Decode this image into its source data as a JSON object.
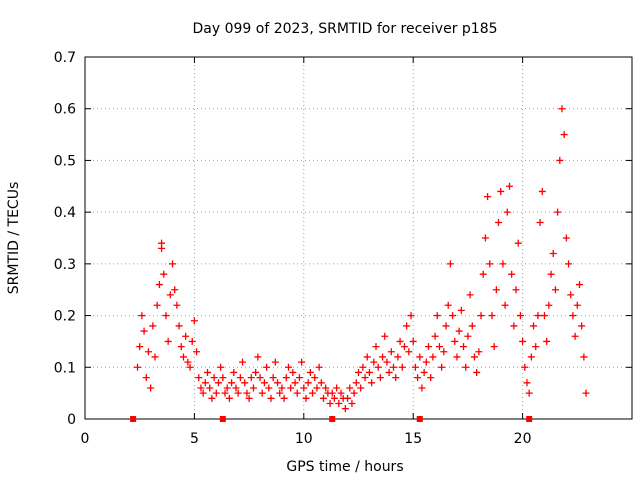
{
  "chart_data": {
    "type": "scatter",
    "title": "Day 099 of 2023, SRMTID for receiver p185",
    "xlabel": "GPS time / hours",
    "ylabel": "SRMTID / TECUs",
    "xlim": [
      0,
      25
    ],
    "ylim": [
      0,
      0.7
    ],
    "xticks": [
      0,
      5,
      10,
      15,
      20
    ],
    "yticks": [
      0,
      0.1,
      0.2,
      0.3,
      0.4,
      0.5,
      0.6,
      0.7
    ],
    "xtick_labels": [
      "0",
      "5",
      "10",
      "15",
      "20"
    ],
    "ytick_labels": [
      "0",
      "0.1",
      "0.2",
      "0.3",
      "0.4",
      "0.5",
      "0.6",
      "0.7"
    ],
    "grid": true,
    "marker": "+",
    "color": "#ff0000",
    "zero_markers_x": [
      2.2,
      6.3,
      11.3,
      15.3,
      20.3
    ],
    "series": [
      {
        "name": "SRMTID",
        "points": [
          [
            2.4,
            0.1
          ],
          [
            2.5,
            0.14
          ],
          [
            2.6,
            0.2
          ],
          [
            2.7,
            0.17
          ],
          [
            2.8,
            0.08
          ],
          [
            2.9,
            0.13
          ],
          [
            3.0,
            0.06
          ],
          [
            3.1,
            0.18
          ],
          [
            3.2,
            0.12
          ],
          [
            3.3,
            0.22
          ],
          [
            3.4,
            0.26
          ],
          [
            3.5,
            0.33
          ],
          [
            3.5,
            0.34
          ],
          [
            3.6,
            0.28
          ],
          [
            3.7,
            0.2
          ],
          [
            3.8,
            0.15
          ],
          [
            3.9,
            0.24
          ],
          [
            4.0,
            0.3
          ],
          [
            4.1,
            0.25
          ],
          [
            4.2,
            0.22
          ],
          [
            4.3,
            0.18
          ],
          [
            4.4,
            0.14
          ],
          [
            4.5,
            0.12
          ],
          [
            4.6,
            0.16
          ],
          [
            4.7,
            0.11
          ],
          [
            4.8,
            0.1
          ],
          [
            4.9,
            0.15
          ],
          [
            5.0,
            0.19
          ],
          [
            5.1,
            0.13
          ],
          [
            5.2,
            0.08
          ],
          [
            5.3,
            0.06
          ],
          [
            5.4,
            0.05
          ],
          [
            5.5,
            0.07
          ],
          [
            5.6,
            0.09
          ],
          [
            5.7,
            0.06
          ],
          [
            5.8,
            0.04
          ],
          [
            5.9,
            0.08
          ],
          [
            6.0,
            0.05
          ],
          [
            6.1,
            0.07
          ],
          [
            6.2,
            0.1
          ],
          [
            6.3,
            0.08
          ],
          [
            6.4,
            0.05
          ],
          [
            6.5,
            0.06
          ],
          [
            6.6,
            0.04
          ],
          [
            6.7,
            0.07
          ],
          [
            6.8,
            0.09
          ],
          [
            6.9,
            0.06
          ],
          [
            7.0,
            0.05
          ],
          [
            7.1,
            0.08
          ],
          [
            7.2,
            0.11
          ],
          [
            7.3,
            0.07
          ],
          [
            7.4,
            0.05
          ],
          [
            7.5,
            0.04
          ],
          [
            7.6,
            0.08
          ],
          [
            7.7,
            0.06
          ],
          [
            7.8,
            0.09
          ],
          [
            7.9,
            0.12
          ],
          [
            8.0,
            0.08
          ],
          [
            8.1,
            0.05
          ],
          [
            8.2,
            0.07
          ],
          [
            8.3,
            0.1
          ],
          [
            8.4,
            0.06
          ],
          [
            8.5,
            0.04
          ],
          [
            8.6,
            0.08
          ],
          [
            8.7,
            0.11
          ],
          [
            8.8,
            0.07
          ],
          [
            8.9,
            0.05
          ],
          [
            9.0,
            0.06
          ],
          [
            9.1,
            0.04
          ],
          [
            9.2,
            0.08
          ],
          [
            9.3,
            0.1
          ],
          [
            9.4,
            0.06
          ],
          [
            9.5,
            0.09
          ],
          [
            9.6,
            0.07
          ],
          [
            9.7,
            0.05
          ],
          [
            9.8,
            0.08
          ],
          [
            9.9,
            0.11
          ],
          [
            10.0,
            0.06
          ],
          [
            10.1,
            0.04
          ],
          [
            10.2,
            0.07
          ],
          [
            10.3,
            0.09
          ],
          [
            10.4,
            0.05
          ],
          [
            10.5,
            0.08
          ],
          [
            10.6,
            0.06
          ],
          [
            10.7,
            0.1
          ],
          [
            10.8,
            0.07
          ],
          [
            10.9,
            0.04
          ],
          [
            11.0,
            0.06
          ],
          [
            11.1,
            0.05
          ],
          [
            11.2,
            0.03
          ],
          [
            11.3,
            0.05
          ],
          [
            11.4,
            0.04
          ],
          [
            11.5,
            0.06
          ],
          [
            11.6,
            0.03
          ],
          [
            11.7,
            0.05
          ],
          [
            11.8,
            0.04
          ],
          [
            11.9,
            0.02
          ],
          [
            12.0,
            0.04
          ],
          [
            12.1,
            0.06
          ],
          [
            12.2,
            0.03
          ],
          [
            12.3,
            0.05
          ],
          [
            12.4,
            0.07
          ],
          [
            12.5,
            0.09
          ],
          [
            12.6,
            0.06
          ],
          [
            12.7,
            0.1
          ],
          [
            12.8,
            0.08
          ],
          [
            12.9,
            0.12
          ],
          [
            13.0,
            0.09
          ],
          [
            13.1,
            0.07
          ],
          [
            13.2,
            0.11
          ],
          [
            13.3,
            0.14
          ],
          [
            13.4,
            0.1
          ],
          [
            13.5,
            0.08
          ],
          [
            13.6,
            0.12
          ],
          [
            13.7,
            0.16
          ],
          [
            13.8,
            0.11
          ],
          [
            13.9,
            0.09
          ],
          [
            14.0,
            0.13
          ],
          [
            14.1,
            0.1
          ],
          [
            14.2,
            0.08
          ],
          [
            14.3,
            0.12
          ],
          [
            14.4,
            0.15
          ],
          [
            14.5,
            0.1
          ],
          [
            14.6,
            0.14
          ],
          [
            14.7,
            0.18
          ],
          [
            14.8,
            0.13
          ],
          [
            14.9,
            0.2
          ],
          [
            15.0,
            0.15
          ],
          [
            15.1,
            0.1
          ],
          [
            15.2,
            0.08
          ],
          [
            15.3,
            0.12
          ],
          [
            15.4,
            0.06
          ],
          [
            15.5,
            0.09
          ],
          [
            15.6,
            0.11
          ],
          [
            15.7,
            0.14
          ],
          [
            15.8,
            0.08
          ],
          [
            15.9,
            0.12
          ],
          [
            16.0,
            0.16
          ],
          [
            16.1,
            0.2
          ],
          [
            16.2,
            0.14
          ],
          [
            16.3,
            0.1
          ],
          [
            16.4,
            0.13
          ],
          [
            16.5,
            0.18
          ],
          [
            16.6,
            0.22
          ],
          [
            16.7,
            0.3
          ],
          [
            16.8,
            0.2
          ],
          [
            16.9,
            0.15
          ],
          [
            17.0,
            0.12
          ],
          [
            17.1,
            0.17
          ],
          [
            17.2,
            0.21
          ],
          [
            17.3,
            0.14
          ],
          [
            17.4,
            0.1
          ],
          [
            17.5,
            0.16
          ],
          [
            17.6,
            0.24
          ],
          [
            17.7,
            0.18
          ],
          [
            17.8,
            0.12
          ],
          [
            17.9,
            0.09
          ],
          [
            18.0,
            0.13
          ],
          [
            18.1,
            0.2
          ],
          [
            18.2,
            0.28
          ],
          [
            18.3,
            0.35
          ],
          [
            18.4,
            0.43
          ],
          [
            18.5,
            0.3
          ],
          [
            18.6,
            0.2
          ],
          [
            18.7,
            0.14
          ],
          [
            18.8,
            0.25
          ],
          [
            18.9,
            0.38
          ],
          [
            19.0,
            0.44
          ],
          [
            19.1,
            0.3
          ],
          [
            19.2,
            0.22
          ],
          [
            19.3,
            0.4
          ],
          [
            19.4,
            0.45
          ],
          [
            19.5,
            0.28
          ],
          [
            19.6,
            0.18
          ],
          [
            19.7,
            0.25
          ],
          [
            19.8,
            0.34
          ],
          [
            19.9,
            0.2
          ],
          [
            20.0,
            0.15
          ],
          [
            20.1,
            0.1
          ],
          [
            20.2,
            0.07
          ],
          [
            20.3,
            0.05
          ],
          [
            20.4,
            0.12
          ],
          [
            20.5,
            0.18
          ],
          [
            20.6,
            0.14
          ],
          [
            20.7,
            0.2
          ],
          [
            20.8,
            0.38
          ],
          [
            20.9,
            0.44
          ],
          [
            21.0,
            0.2
          ],
          [
            21.1,
            0.15
          ],
          [
            21.2,
            0.22
          ],
          [
            21.3,
            0.28
          ],
          [
            21.4,
            0.32
          ],
          [
            21.5,
            0.25
          ],
          [
            21.6,
            0.4
          ],
          [
            21.7,
            0.5
          ],
          [
            21.8,
            0.6
          ],
          [
            21.9,
            0.55
          ],
          [
            22.0,
            0.35
          ],
          [
            22.1,
            0.3
          ],
          [
            22.2,
            0.24
          ],
          [
            22.3,
            0.2
          ],
          [
            22.4,
            0.16
          ],
          [
            22.5,
            0.22
          ],
          [
            22.6,
            0.26
          ],
          [
            22.7,
            0.18
          ],
          [
            22.8,
            0.12
          ],
          [
            22.9,
            0.05
          ]
        ]
      }
    ]
  }
}
